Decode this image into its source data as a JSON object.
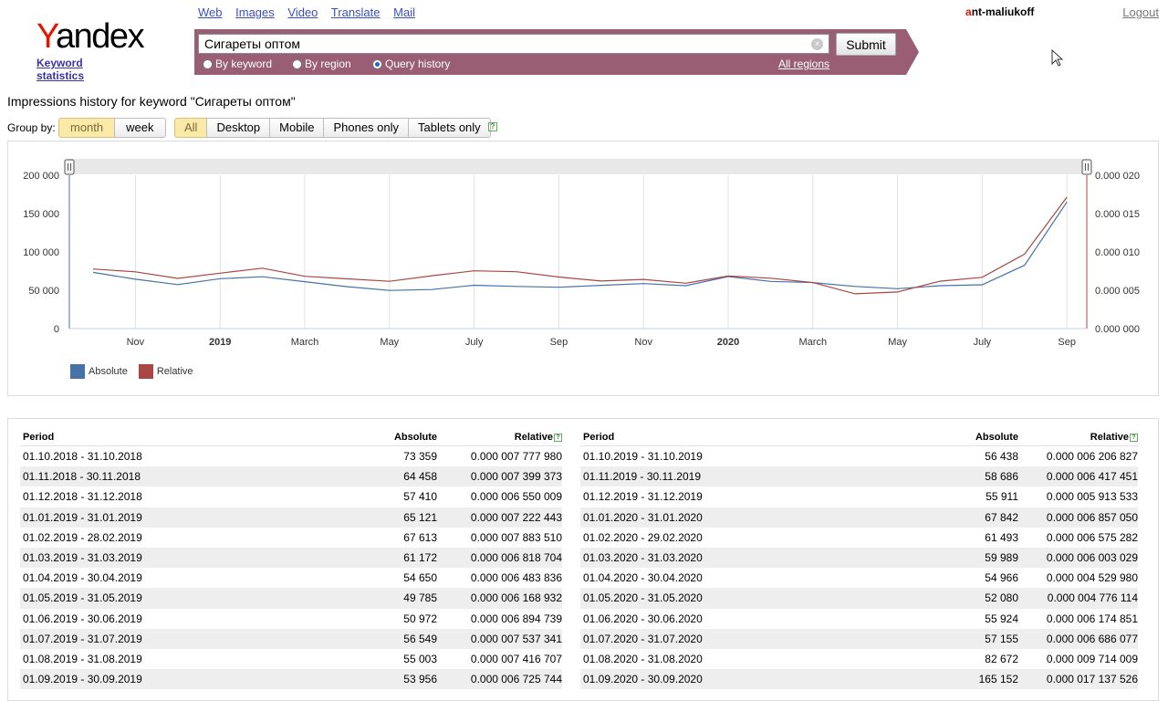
{
  "logo": {
    "word_first": "Y",
    "word_rest": "andex",
    "subtitle": "Keyword statistics"
  },
  "topnav": [
    "Web",
    "Images",
    "Video",
    "Translate",
    "Mail"
  ],
  "user": {
    "first": "a",
    "rest": "nt-maliukoff"
  },
  "logout": "Logout",
  "search": {
    "value": "Сигареты оптом",
    "submit": "Submit",
    "modes": [
      "By keyword",
      "By region",
      "Query history"
    ],
    "selected_mode": "Query history",
    "regions": "All regions"
  },
  "heading": "Impressions history for keyword \"Сигареты оптом\"",
  "group_by": {
    "label": "Group by:",
    "options": [
      "month",
      "week"
    ],
    "selected": "month"
  },
  "devices": {
    "options": [
      "All",
      "Desktop",
      "Mobile",
      "Phones only",
      "Tablets only"
    ],
    "selected": "All",
    "help": "?"
  },
  "colors": {
    "absolute": "#4572a7",
    "relative": "#aa4643"
  },
  "chart_data": {
    "type": "line",
    "x": [
      "2018-10",
      "2018-11",
      "2018-12",
      "2019-01",
      "2019-02",
      "2019-03",
      "2019-04",
      "2019-05",
      "2019-06",
      "2019-07",
      "2019-08",
      "2019-09",
      "2019-10",
      "2019-11",
      "2019-12",
      "2020-01",
      "2020-02",
      "2020-03",
      "2020-04",
      "2020-05",
      "2020-06",
      "2020-07",
      "2020-08",
      "2020-09"
    ],
    "x_tick_labels": [
      "Nov",
      "2019",
      "March",
      "May",
      "July",
      "Sep",
      "Nov",
      "2020",
      "March",
      "May",
      "July",
      "Sep"
    ],
    "y_left_ticks": [
      "0",
      "50 000",
      "100 000",
      "150 000",
      "200 000"
    ],
    "y_right_ticks": [
      "0.000 000",
      "0.000 005",
      "0.000 010",
      "0.000 015",
      "0.000 020"
    ],
    "ylim_left": [
      0,
      200000
    ],
    "ylim_right": [
      0,
      2e-05
    ],
    "grid": "vertical",
    "legend_placement": "bottom-left",
    "series": [
      {
        "name": "Absolute",
        "axis": "left",
        "values": [
          73359,
          64458,
          57410,
          65121,
          67613,
          61172,
          54650,
          49785,
          50972,
          56549,
          55003,
          53956,
          56438,
          58686,
          55911,
          67842,
          61493,
          59989,
          54966,
          52080,
          55924,
          57155,
          82672,
          165152
        ]
      },
      {
        "name": "Relative",
        "axis": "right",
        "values": [
          7.77798e-06,
          7.399373e-06,
          6.550009e-06,
          7.222443e-06,
          7.88351e-06,
          6.818704e-06,
          6.483836e-06,
          6.168932e-06,
          6.894739e-06,
          7.537341e-06,
          7.416707e-06,
          6.725744e-06,
          6.206827e-06,
          6.417451e-06,
          5.913533e-06,
          6.85705e-06,
          6.575282e-06,
          6.003029e-06,
          4.52998e-06,
          4.776114e-06,
          6.174851e-06,
          6.686077e-06,
          9.714009e-06,
          1.7137526e-05
        ]
      }
    ]
  },
  "table": {
    "headers": {
      "period": "Period",
      "absolute": "Absolute",
      "relative": "Relative"
    },
    "left": [
      {
        "period": "01.10.2018 - 31.10.2018",
        "absolute": "73 359",
        "relative": "0.000 007 777 980"
      },
      {
        "period": "01.11.2018 - 30.11.2018",
        "absolute": "64 458",
        "relative": "0.000 007 399 373"
      },
      {
        "period": "01.12.2018 - 31.12.2018",
        "absolute": "57 410",
        "relative": "0.000 006 550 009"
      },
      {
        "period": "01.01.2019 - 31.01.2019",
        "absolute": "65 121",
        "relative": "0.000 007 222 443"
      },
      {
        "period": "01.02.2019 - 28.02.2019",
        "absolute": "67 613",
        "relative": "0.000 007 883 510"
      },
      {
        "period": "01.03.2019 - 31.03.2019",
        "absolute": "61 172",
        "relative": "0.000 006 818 704"
      },
      {
        "period": "01.04.2019 - 30.04.2019",
        "absolute": "54 650",
        "relative": "0.000 006 483 836"
      },
      {
        "period": "01.05.2019 - 31.05.2019",
        "absolute": "49 785",
        "relative": "0.000 006 168 932"
      },
      {
        "period": "01.06.2019 - 30.06.2019",
        "absolute": "50 972",
        "relative": "0.000 006 894 739"
      },
      {
        "period": "01.07.2019 - 31.07.2019",
        "absolute": "56 549",
        "relative": "0.000 007 537 341"
      },
      {
        "period": "01.08.2019 - 31.08.2019",
        "absolute": "55 003",
        "relative": "0.000 007 416 707"
      },
      {
        "period": "01.09.2019 - 30.09.2019",
        "absolute": "53 956",
        "relative": "0.000 006 725 744"
      }
    ],
    "right": [
      {
        "period": "01.10.2019 - 31.10.2019",
        "absolute": "56 438",
        "relative": "0.000 006 206 827"
      },
      {
        "period": "01.11.2019 - 30.11.2019",
        "absolute": "58 686",
        "relative": "0.000 006 417 451"
      },
      {
        "period": "01.12.2019 - 31.12.2019",
        "absolute": "55 911",
        "relative": "0.000 005 913 533"
      },
      {
        "period": "01.01.2020 - 31.01.2020",
        "absolute": "67 842",
        "relative": "0.000 006 857 050"
      },
      {
        "period": "01.02.2020 - 29.02.2020",
        "absolute": "61 493",
        "relative": "0.000 006 575 282"
      },
      {
        "period": "01.03.2020 - 31.03.2020",
        "absolute": "59 989",
        "relative": "0.000 006 003 029"
      },
      {
        "period": "01.04.2020 - 30.04.2020",
        "absolute": "54 966",
        "relative": "0.000 004 529 980"
      },
      {
        "period": "01.05.2020 - 31.05.2020",
        "absolute": "52 080",
        "relative": "0.000 004 776 114"
      },
      {
        "period": "01.06.2020 - 30.06.2020",
        "absolute": "55 924",
        "relative": "0.000 006 174 851"
      },
      {
        "period": "01.07.2020 - 31.07.2020",
        "absolute": "57 155",
        "relative": "0.000 006 686 077"
      },
      {
        "period": "01.08.2020 - 31.08.2020",
        "absolute": "82 672",
        "relative": "0.000 009 714 009"
      },
      {
        "period": "01.09.2020 - 30.09.2020",
        "absolute": "165 152",
        "relative": "0.000 017 137 526"
      }
    ]
  }
}
